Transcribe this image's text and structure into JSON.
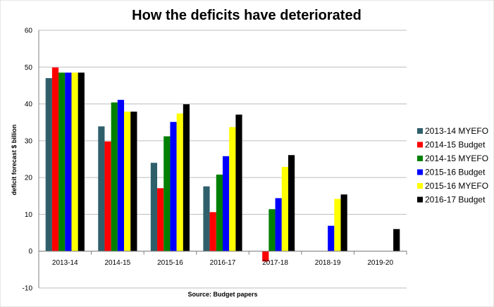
{
  "chart_data": {
    "type": "bar",
    "title": "How the deficits have deteriorated",
    "xlabel": "Source: Budget papers",
    "ylabel": "deficit forecast $ billion",
    "ylim": [
      -10,
      60
    ],
    "yticks": [
      -10,
      0,
      10,
      20,
      30,
      40,
      50,
      60
    ],
    "grid": true,
    "legend_position": "right",
    "categories": [
      "2013-14",
      "2014-15",
      "2015-16",
      "2016-17",
      "2017-18",
      "2018-19",
      "2019-20"
    ],
    "series": [
      {
        "name": "2013-14 MYEFO",
        "color": "#2F5F6B",
        "values": [
          47.0,
          33.9,
          24.0,
          17.6,
          null,
          null,
          null
        ]
      },
      {
        "name": "2014-15 Budget",
        "color": "#FF0000",
        "values": [
          49.9,
          29.8,
          17.1,
          10.6,
          -2.8,
          null,
          null
        ]
      },
      {
        "name": "2014-15 MYEFO",
        "color": "#008000",
        "values": [
          48.5,
          40.4,
          31.2,
          20.8,
          11.4,
          null,
          null
        ]
      },
      {
        "name": "2015-16 Budget",
        "color": "#0000FF",
        "values": [
          48.5,
          41.1,
          35.1,
          25.8,
          14.4,
          6.9,
          null
        ]
      },
      {
        "name": "2015-16 MYEFO",
        "color": "#FFFF00",
        "values": [
          48.5,
          37.9,
          37.4,
          33.7,
          22.9,
          14.2,
          null
        ]
      },
      {
        "name": "2016-17 Budget",
        "color": "#000000",
        "values": [
          48.5,
          37.9,
          39.9,
          37.1,
          26.1,
          15.4,
          6.0
        ]
      }
    ]
  }
}
